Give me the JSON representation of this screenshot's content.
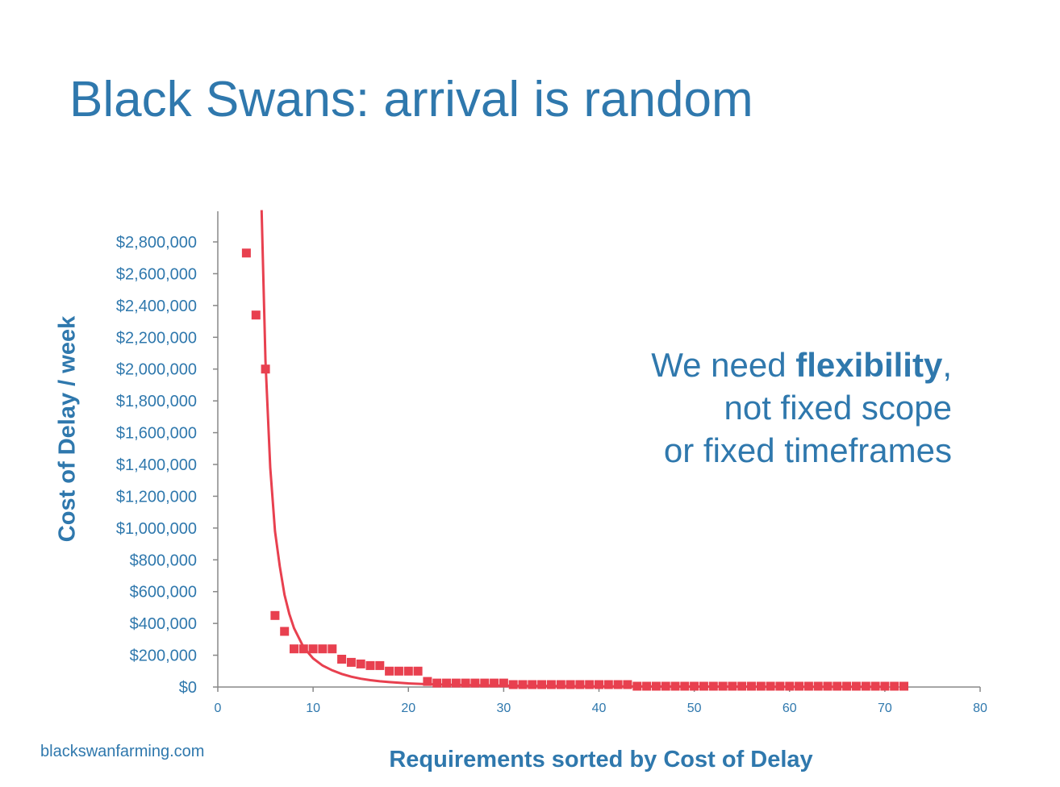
{
  "slide": {
    "title": "Black Swans: arrival is random",
    "callout_line1_pre": "We need ",
    "callout_line1_bold": "flexibility",
    "callout_line1_post": ",",
    "callout_line2": "not fixed scope",
    "callout_line3": "or fixed timeframes",
    "footer": "blackswanfarming.com"
  },
  "colors": {
    "accent": "#2f78ad",
    "series": "#e8404f",
    "axis": "#888888"
  },
  "chart_data": {
    "type": "scatter",
    "xlabel": "Requirements sorted by Cost of Delay",
    "ylabel": "Cost of Delay / week",
    "xlim": [
      0,
      80
    ],
    "ylim": [
      0,
      2800000
    ],
    "x_ticks": [
      0,
      10,
      20,
      30,
      40,
      50,
      60,
      70,
      80
    ],
    "y_ticks": [
      0,
      200000,
      400000,
      600000,
      800000,
      1000000,
      1200000,
      1400000,
      1600000,
      1800000,
      2000000,
      2200000,
      2400000,
      2600000,
      2800000
    ],
    "y_tick_labels": [
      "$0",
      "$200,000",
      "$400,000",
      "$600,000",
      "$800,000",
      "$1,000,000",
      "$1,200,000",
      "$1,400,000",
      "$1,600,000",
      "$1,800,000",
      "$2,000,000",
      "$2,200,000",
      "$2,400,000",
      "$2,600,000",
      "$2,800,000"
    ],
    "grid": false,
    "series": [
      {
        "marker": "square",
        "x": [
          3,
          4,
          5,
          6,
          7,
          8,
          9,
          10,
          11,
          12,
          13,
          14,
          15,
          16,
          17,
          18,
          19,
          20,
          21,
          22,
          23,
          24,
          25,
          26,
          27,
          28,
          29,
          30,
          31,
          32,
          33,
          34,
          35,
          36,
          37,
          38,
          39,
          40,
          41,
          42,
          43,
          44,
          45,
          46,
          47,
          48,
          49,
          50,
          51,
          52,
          53,
          54,
          55,
          56,
          57,
          58,
          59,
          60,
          61,
          62,
          63,
          64,
          65,
          66,
          67,
          68,
          69,
          70,
          71,
          72
        ],
        "y": [
          2730000,
          2340000,
          2000000,
          450000,
          350000,
          240000,
          240000,
          240000,
          240000,
          240000,
          175000,
          155000,
          145000,
          135000,
          135000,
          100000,
          100000,
          100000,
          100000,
          35000,
          25000,
          25000,
          25000,
          25000,
          25000,
          25000,
          25000,
          25000,
          15000,
          15000,
          15000,
          15000,
          15000,
          15000,
          15000,
          15000,
          15000,
          15000,
          15000,
          15000,
          15000,
          5000,
          5000,
          5000,
          5000,
          5000,
          5000,
          5000,
          5000,
          5000,
          5000,
          5000,
          5000,
          5000,
          5000,
          5000,
          5000,
          5000,
          5000,
          5000,
          5000,
          5000,
          5000,
          5000,
          5000,
          5000,
          5000,
          5000,
          5000,
          5000
        ]
      },
      {
        "type": "line",
        "x": [
          4.6,
          5,
          5.5,
          6,
          6.5,
          7,
          7.5,
          8,
          9,
          10,
          11,
          12,
          13,
          14,
          15,
          16,
          17,
          18,
          20,
          22,
          25,
          30,
          40,
          50,
          60,
          70
        ],
        "y": [
          3000000,
          2050000,
          1380000,
          980000,
          760000,
          580000,
          460000,
          370000,
          250000,
          180000,
          135000,
          105000,
          82000,
          65000,
          52000,
          43000,
          36000,
          31000,
          23000,
          18000,
          13000,
          8000,
          4000,
          2500,
          1700,
          1200
        ]
      }
    ]
  }
}
